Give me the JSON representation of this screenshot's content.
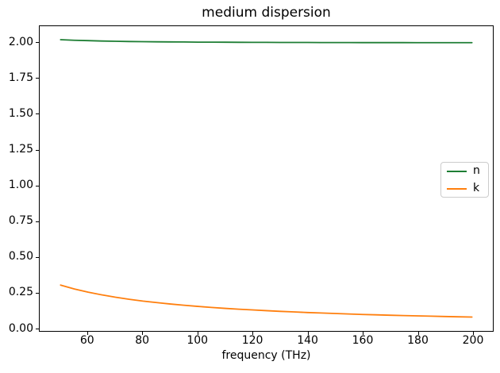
{
  "chart_data": {
    "type": "line",
    "title": "medium dispersion",
    "xlabel": "frequency (THz)",
    "ylabel": "",
    "grid": false,
    "legend_position": "center right",
    "xlim": [
      42.5,
      207.5
    ],
    "ylim": [
      -0.0223,
      2.1173
    ],
    "x_ticks": [
      60,
      80,
      100,
      120,
      140,
      160,
      180,
      200
    ],
    "y_ticks": [
      0.0,
      0.25,
      0.5,
      0.75,
      1.0,
      1.25,
      1.5,
      1.75,
      2.0
    ],
    "y_tick_labels": [
      "0.00",
      "0.25",
      "0.50",
      "0.75",
      "1.00",
      "1.25",
      "1.50",
      "1.75",
      "2.00"
    ],
    "x": [
      50,
      55,
      60,
      65,
      70,
      75,
      80,
      85,
      90,
      95,
      100,
      105,
      110,
      115,
      120,
      125,
      130,
      135,
      140,
      145,
      150,
      155,
      160,
      165,
      170,
      175,
      180,
      185,
      190,
      195,
      200
    ],
    "series": [
      {
        "name": "n",
        "color": "#1e7e34",
        "values": [
          2.0225,
          2.0186,
          2.0156,
          2.0133,
          2.0115,
          2.01,
          2.0088,
          2.0078,
          2.0069,
          2.0062,
          2.0056,
          2.0051,
          2.0046,
          2.0043,
          2.0039,
          2.0036,
          2.0033,
          2.0031,
          2.0029,
          2.0027,
          2.0025,
          2.0023,
          2.0022,
          2.0021,
          2.0019,
          2.0018,
          2.0017,
          2.0016,
          2.0016,
          2.0015,
          2.0014
        ]
      },
      {
        "name": "k",
        "color": "#ff7f0e",
        "values": [
          0.3,
          0.2727,
          0.25,
          0.2308,
          0.2143,
          0.2,
          0.1875,
          0.1765,
          0.1667,
          0.1579,
          0.15,
          0.1429,
          0.1364,
          0.1304,
          0.125,
          0.12,
          0.1154,
          0.1111,
          0.1071,
          0.1034,
          0.1,
          0.0968,
          0.0938,
          0.0909,
          0.0882,
          0.0857,
          0.0833,
          0.0811,
          0.0789,
          0.0769,
          0.075
        ]
      }
    ]
  }
}
